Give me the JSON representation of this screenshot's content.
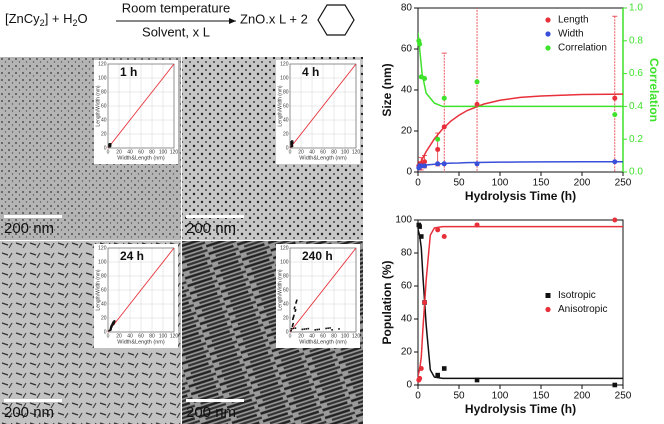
{
  "scheme": {
    "reactant": "[ZnCy",
    "sub1": "2",
    "plus": "] + H",
    "sub2": "2",
    "o": "O",
    "above": "Room temperature",
    "below": "Solvent, x L",
    "product": "ZnO.x L + 2"
  },
  "panels": [
    {
      "label": "1 h",
      "scale": "200 nm"
    },
    {
      "label": "4 h",
      "scale": "200 nm"
    },
    {
      "label": "24 h",
      "scale": "200 nm"
    },
    {
      "label": "240 h",
      "scale": "200 nm"
    }
  ],
  "inset": {
    "xlabel": "Width&Length (nm)",
    "ylabel": "Length/Width (nm)",
    "xlim": [
      0,
      120
    ],
    "ylim": [
      0,
      120
    ],
    "xticks": [
      0,
      20,
      40,
      60,
      80,
      100,
      120
    ],
    "yticks": [
      0,
      20,
      40,
      60,
      80,
      100,
      120
    ]
  },
  "chart_data": [
    {
      "type": "scatter",
      "xlabel": "Hydrolysis Time (h)",
      "ylabel": "Size (nm)",
      "y2label": "Correlation",
      "y2color": "#3ee22a",
      "legend": "upper right",
      "x": [
        1,
        2,
        4,
        8,
        24,
        32,
        72,
        240
      ],
      "xlim": [
        0,
        250
      ],
      "xticks": [
        0,
        50,
        100,
        150,
        200,
        250
      ],
      "ylim": [
        0,
        80
      ],
      "yticks": [
        0,
        20,
        40,
        60,
        80
      ],
      "y2lim": [
        0,
        1
      ],
      "y2ticks": [
        {
          "value": 0,
          "label": "0.0"
        },
        {
          "value": 0.2,
          "label": "0.2"
        },
        {
          "value": 0.4,
          "label": "0.4"
        },
        {
          "value": 0.6,
          "label": "0.6"
        },
        {
          "value": 0.8,
          "label": "0.8"
        },
        {
          "value": 1,
          "label": "1.0"
        }
      ],
      "fit_x": [
        0,
        5,
        10,
        20,
        30,
        40,
        50,
        60,
        80,
        100,
        125,
        150,
        200,
        250
      ],
      "series": [
        {
          "name": "Length",
          "color": "#e8303a",
          "marker": "circle",
          "values": [
            3,
            3,
            4,
            5,
            11,
            22,
            33,
            36
          ],
          "errors": [
            2,
            2,
            3,
            3,
            8,
            36,
            50,
            40
          ],
          "fit": [
            2,
            6.2,
            10,
            16.2,
            21,
            24.8,
            27.7,
            30,
            33.1,
            35,
            36.4,
            37.1,
            37.8,
            38
          ]
        },
        {
          "name": "Width",
          "color": "#3a4fd8",
          "marker": "circle",
          "values": [
            2,
            3,
            3,
            3,
            4,
            4,
            4,
            5
          ],
          "fit": [
            3,
            3.2,
            3.4,
            3.8,
            4.1,
            4.3,
            4.4,
            4.6,
            4.7,
            4.8,
            4.9,
            4.95,
            5,
            5
          ]
        },
        {
          "name": "Correlation",
          "color": "#3ee22a",
          "marker": "circle",
          "axis": "y2",
          "values": [
            0.8,
            0.78,
            0.58,
            0.57,
            0.2,
            0.45,
            0.55,
            0.35
          ],
          "fit": [
            0.85,
            0.6,
            0.48,
            0.42,
            0.4,
            0.4,
            0.4,
            0.4,
            0.4,
            0.4,
            0.4,
            0.4,
            0.4,
            0.4
          ]
        }
      ]
    },
    {
      "type": "scatter",
      "xlabel": "Hydrolysis Time (h)",
      "ylabel": "Population (%)",
      "legend": "center right",
      "x": [
        1,
        2,
        4,
        8,
        24,
        32,
        72,
        240
      ],
      "xlim": [
        0,
        250
      ],
      "xticks": [
        0,
        50,
        100,
        150,
        200,
        250
      ],
      "ylim": [
        0,
        100
      ],
      "yticks": [
        0,
        20,
        40,
        60,
        80,
        100
      ],
      "fit_x": [
        0,
        2,
        4,
        6,
        8,
        10,
        15,
        20,
        30,
        50,
        100,
        150,
        200,
        250
      ],
      "series": [
        {
          "name": "Isotropic",
          "color": "#111111",
          "marker": "square",
          "values": [
            97,
            96,
            90,
            50,
            6,
            10,
            3,
            0
          ],
          "fit": [
            94.4,
            90.5,
            83.2,
            65.9,
            51,
            36.2,
            9.2,
            4.8,
            4,
            4,
            4,
            4,
            4,
            4
          ]
        },
        {
          "name": "Anisotropic",
          "color": "#e8303a",
          "marker": "circle",
          "values": [
            3,
            4,
            10,
            50,
            94,
            90,
            97,
            100
          ],
          "fit": [
            5.6,
            9.5,
            16.8,
            34.1,
            49,
            63.8,
            90.8,
            95.2,
            96,
            96,
            96,
            96,
            96,
            96
          ]
        }
      ]
    }
  ]
}
